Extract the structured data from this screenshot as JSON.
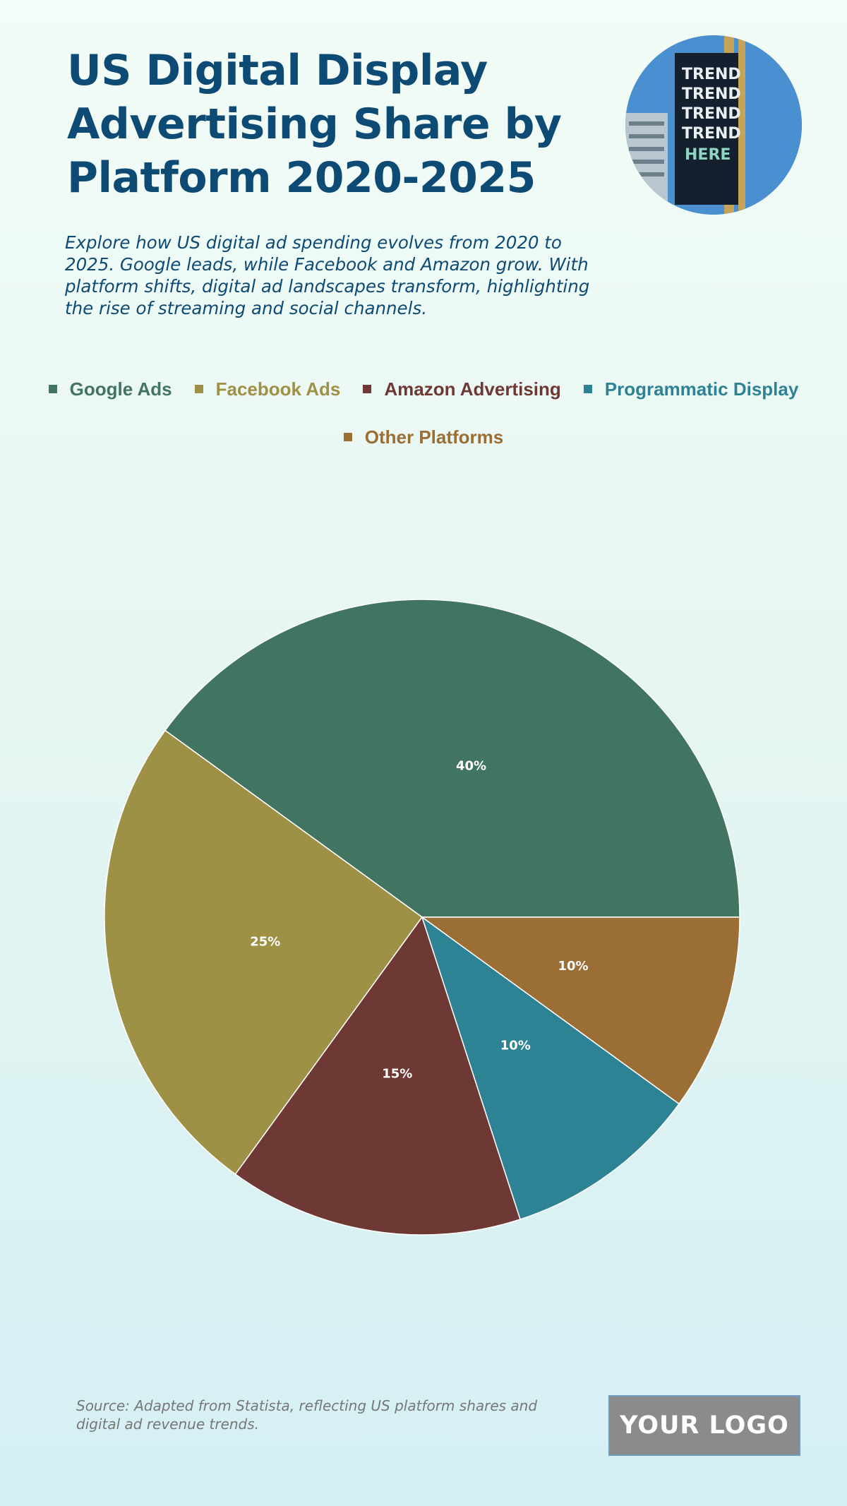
{
  "header": {
    "title": "US Digital Display Advertising Share by Platform 2020-2025",
    "subtitle": "Explore how US digital ad spending evolves from 2020 to 2025. Google leads, while Facebook and Amazon grow. With platform shifts, digital ad landscapes transform, highlighting the rise of streaming and social channels."
  },
  "photo": {
    "icon": "billboard-photo"
  },
  "chart_data": {
    "type": "pie",
    "title": "US Digital Display Advertising Share by Platform 2020-2025",
    "categories": [
      "Google Ads",
      "Facebook Ads",
      "Amazon Advertising",
      "Programmatic Display",
      "Other Platforms"
    ],
    "values": [
      40,
      25,
      15,
      10,
      10
    ],
    "labels": [
      "40%",
      "25%",
      "15%",
      "10%",
      "10%"
    ],
    "colors": [
      "#427561",
      "#9e9045",
      "#6e3835",
      "#2d8394",
      "#9a6e34"
    ],
    "legend": "top-center",
    "start": "3 o'clock",
    "direction": "counter-clockwise"
  },
  "footer": {
    "source": "Source: Adapted from Statista, reflecting US platform shares and digital ad revenue trends.",
    "logo_text": "YOUR LOGO"
  }
}
